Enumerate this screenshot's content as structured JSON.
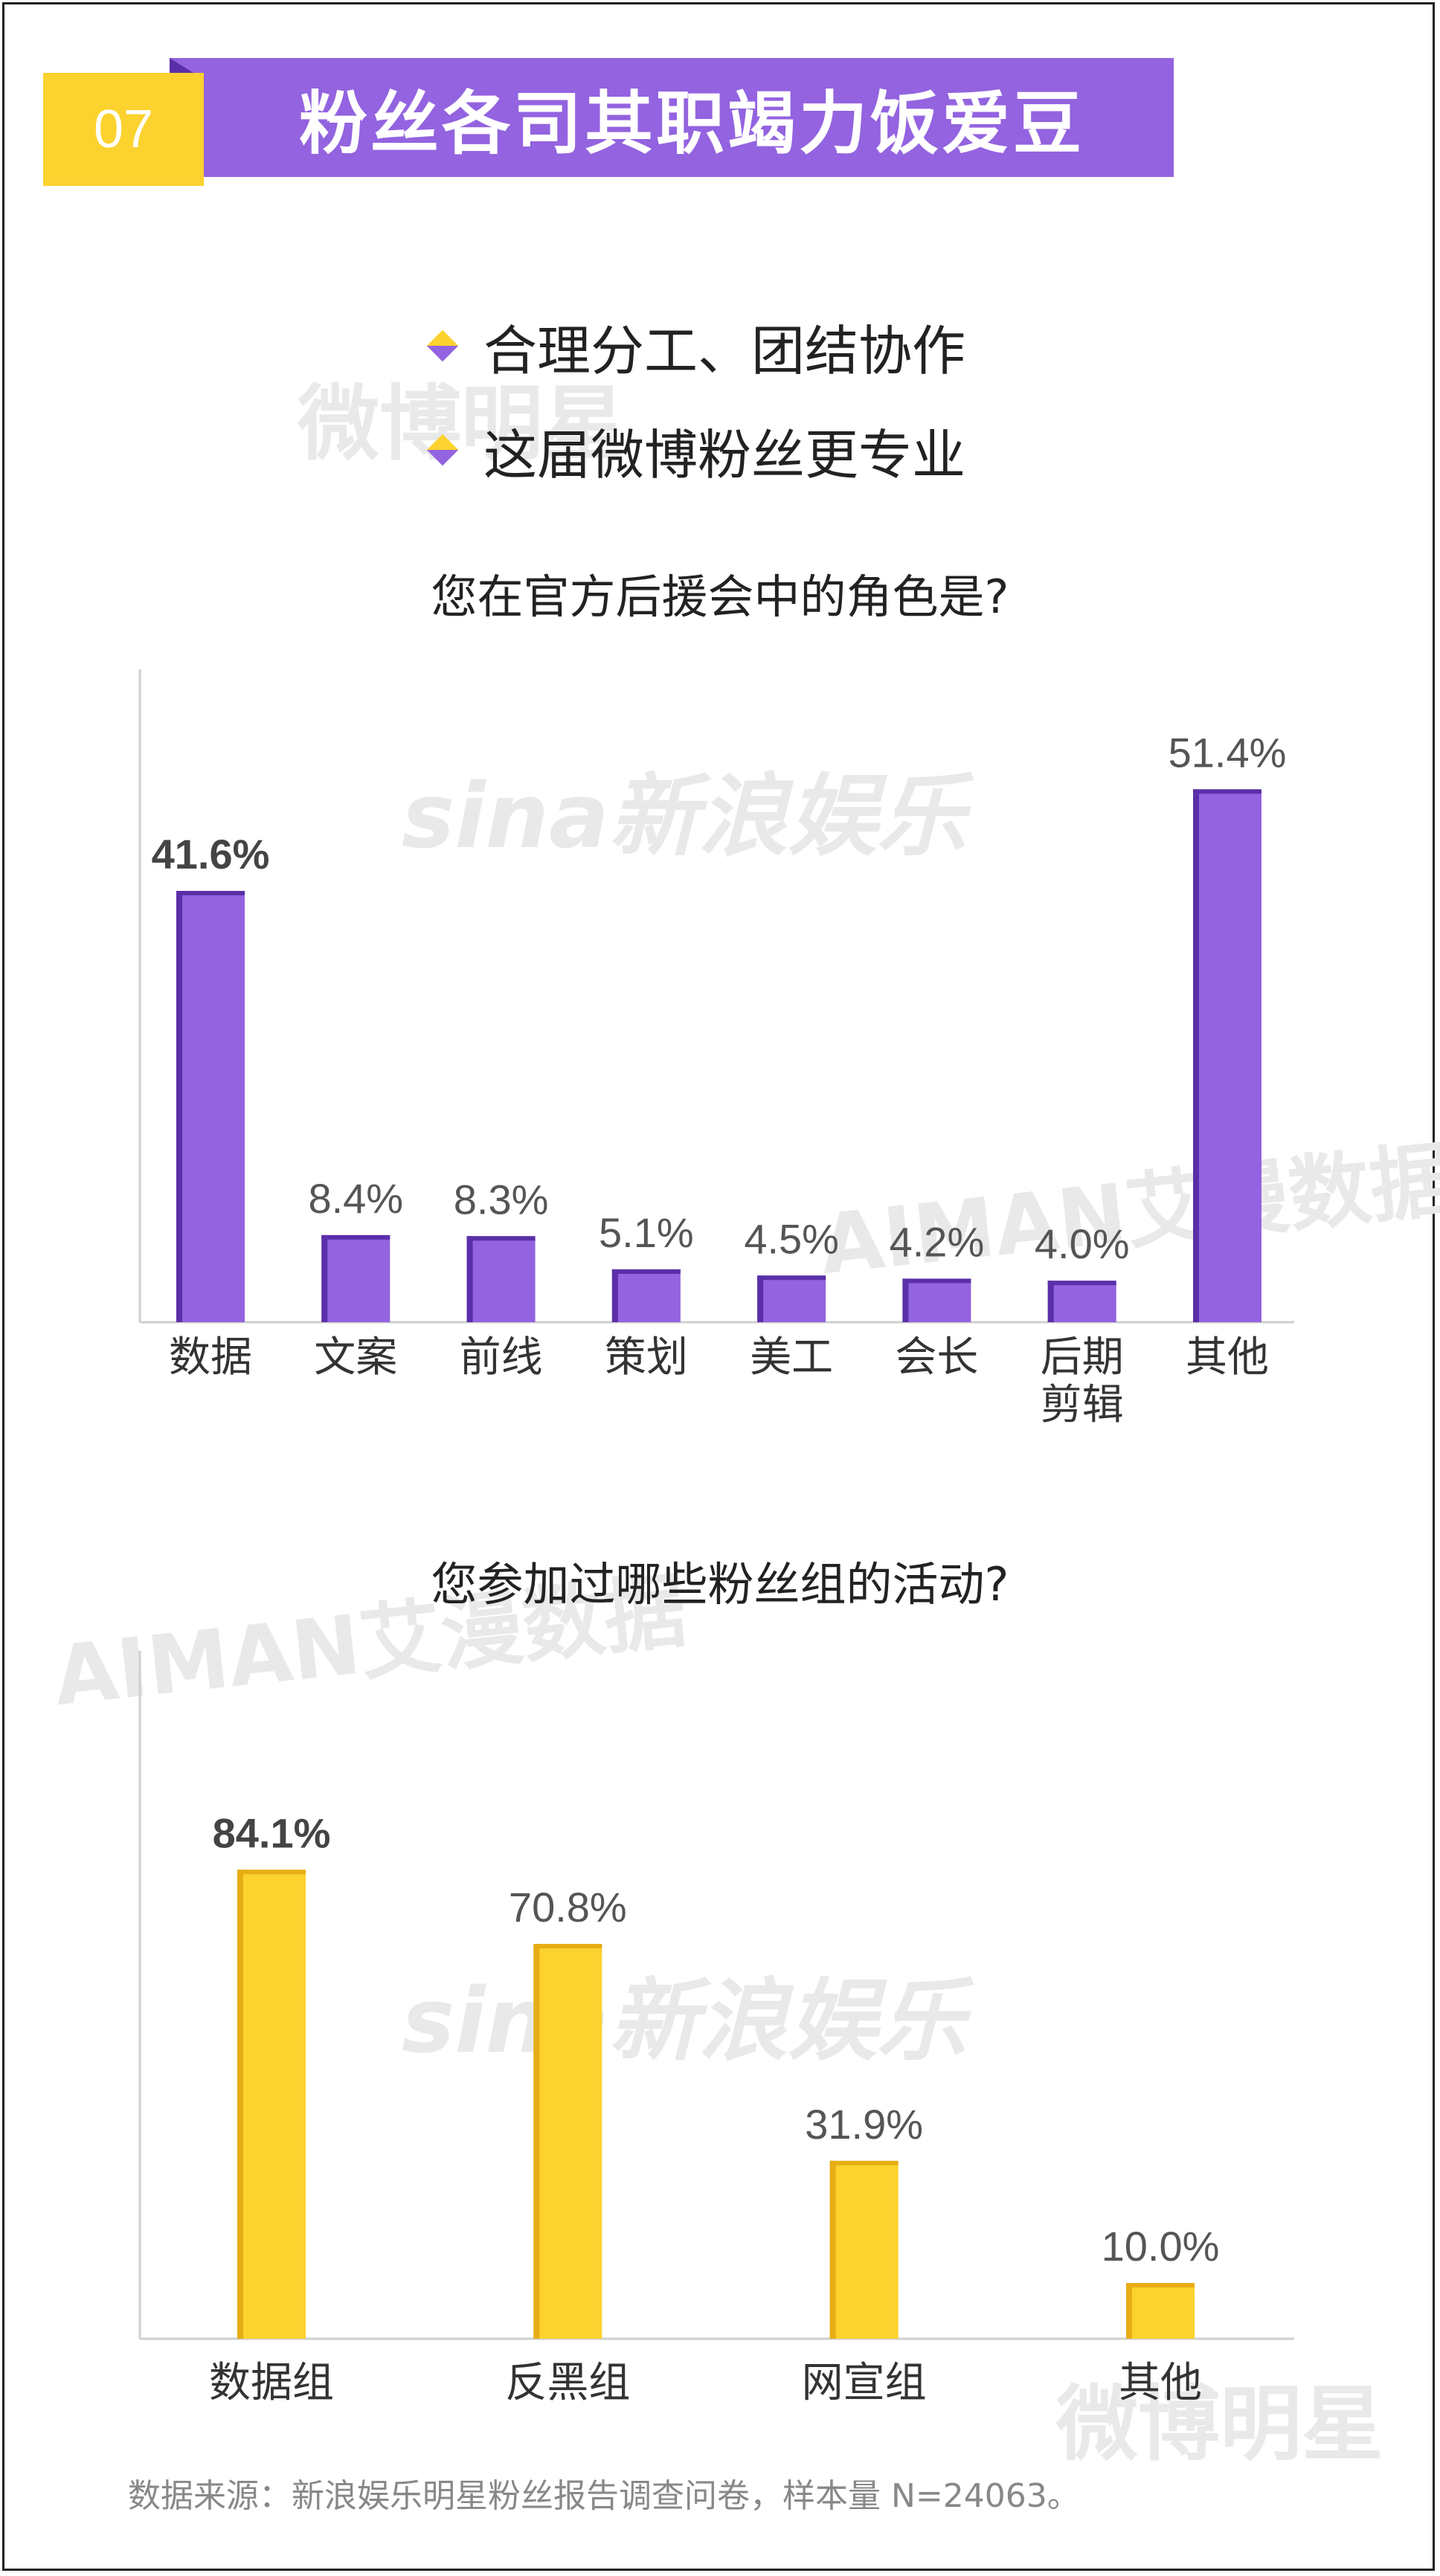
{
  "header": {
    "number": "07",
    "title": "粉丝各司其职竭力饭爱豆"
  },
  "bullets": [
    "合理分工、团结协作",
    "这届微博粉丝更专业"
  ],
  "watermarks": [
    "微博明星",
    "sina新浪娱乐",
    "AIMAN艾漫数据"
  ],
  "colors": {
    "purple": "#9363e0",
    "purple_dark": "#5a2fa8",
    "yellow": "#fbd22e",
    "yellow_dark": "#e6ad14"
  },
  "chart_data": [
    {
      "type": "bar",
      "title": "您在官方后援会中的角色是?",
      "categories": [
        "数据",
        "文案",
        "前线",
        "策划",
        "美工",
        "会长",
        "后期剪辑",
        "其他"
      ],
      "category_lines": [
        [
          "数据"
        ],
        [
          "文案"
        ],
        [
          "前线"
        ],
        [
          "策划"
        ],
        [
          "美工"
        ],
        [
          "会长"
        ],
        [
          "后期",
          "剪辑"
        ],
        [
          "其他"
        ]
      ],
      "values": [
        41.6,
        8.4,
        8.3,
        5.1,
        4.5,
        4.2,
        4.0,
        51.4
      ],
      "value_labels": [
        "41.6%",
        "8.4%",
        "8.3%",
        "5.1%",
        "4.5%",
        "4.2%",
        "4.0%",
        "51.4%"
      ],
      "bold_index": 0,
      "ylim": [
        0,
        60
      ],
      "color": "#9363e0"
    },
    {
      "type": "bar",
      "title": "您参加过哪些粉丝组的活动?",
      "categories": [
        "数据组",
        "反黑组",
        "网宣组",
        "其他"
      ],
      "category_lines": [
        [
          "数据组"
        ],
        [
          "反黑组"
        ],
        [
          "网宣组"
        ],
        [
          "其他"
        ]
      ],
      "values": [
        84.1,
        70.8,
        31.9,
        10.0
      ],
      "value_labels": [
        "84.1%",
        "70.8%",
        "31.9%",
        "10.0%"
      ],
      "bold_index": 0,
      "ylim": [
        0,
        100
      ],
      "color": "#fbd22e"
    }
  ],
  "source": "数据来源：新浪娱乐明星粉丝报告调查问卷，样本量 N=24063。"
}
